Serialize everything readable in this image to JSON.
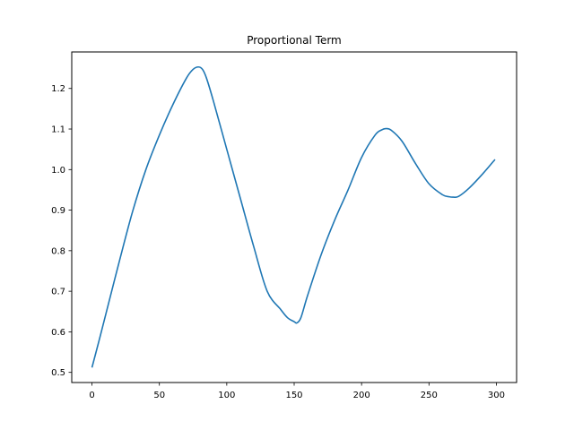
{
  "chart_data": {
    "type": "line",
    "title": "Proportional Term",
    "xlabel": "",
    "ylabel": "",
    "xlim": [
      -15,
      315
    ],
    "ylim": [
      0.475,
      1.29
    ],
    "grid": false,
    "xticks": [
      {
        "value": 0,
        "label": "0"
      },
      {
        "value": 50,
        "label": "50"
      },
      {
        "value": 100,
        "label": "100"
      },
      {
        "value": 150,
        "label": "150"
      },
      {
        "value": 200,
        "label": "200"
      },
      {
        "value": 250,
        "label": "250"
      },
      {
        "value": 300,
        "label": "300"
      }
    ],
    "yticks": [
      {
        "value": 0.5,
        "label": "0.5"
      },
      {
        "value": 0.6,
        "label": "0.6"
      },
      {
        "value": 0.7,
        "label": "0.7"
      },
      {
        "value": 0.8,
        "label": "0.8"
      },
      {
        "value": 0.9,
        "label": "0.9"
      },
      {
        "value": 1.0,
        "label": "1.0"
      },
      {
        "value": 1.1,
        "label": "1.1"
      },
      {
        "value": 1.2,
        "label": "1.2"
      }
    ],
    "series": [
      {
        "color": "#1f77b4",
        "x": [
          0,
          5,
          10,
          20,
          30,
          40,
          50,
          60,
          70,
          75,
          79,
          82,
          85,
          90,
          100,
          110,
          120,
          130,
          140,
          145,
          150,
          152,
          155,
          160,
          170,
          180,
          190,
          200,
          210,
          215,
          218,
          222,
          230,
          240,
          250,
          260,
          265,
          268,
          272,
          280,
          290,
          299
        ],
        "y": [
          0.512,
          0.575,
          0.64,
          0.77,
          0.895,
          1.0,
          1.085,
          1.16,
          1.225,
          1.247,
          1.253,
          1.247,
          1.225,
          1.17,
          1.05,
          0.93,
          0.81,
          0.7,
          0.655,
          0.635,
          0.625,
          0.622,
          0.635,
          0.69,
          0.79,
          0.875,
          0.95,
          1.03,
          1.085,
          1.098,
          1.101,
          1.097,
          1.07,
          1.015,
          0.965,
          0.938,
          0.933,
          0.932,
          0.934,
          0.955,
          0.99,
          1.025
        ]
      }
    ]
  }
}
